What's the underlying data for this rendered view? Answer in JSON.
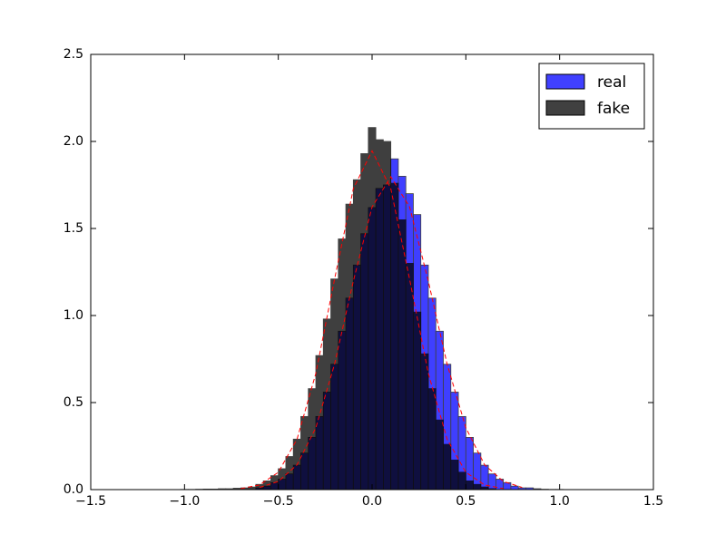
{
  "chart_data": {
    "type": "histogram",
    "xlim": [
      -1.5,
      1.5
    ],
    "ylim": [
      0,
      2.5
    ],
    "xticks": [
      {
        "value": -1.5,
        "label": "−1.5"
      },
      {
        "value": -1.0,
        "label": "−1.0"
      },
      {
        "value": -0.5,
        "label": "−0.5"
      },
      {
        "value": 0,
        "label": "0.0"
      },
      0.5,
      {
        "value": 1.0,
        "label": "1.0"
      },
      1.5
    ],
    "yticks": [
      {
        "value": 0,
        "label": "0.0"
      },
      0.5,
      {
        "value": 1.0,
        "label": "1.0"
      },
      1.5,
      {
        "value": 2.0,
        "label": "2.0"
      },
      2.5
    ],
    "legend": "upper right",
    "series": [
      {
        "name": "real",
        "color": "#0000ff",
        "alpha": 0.75,
        "bins": [
          -0.62,
          -0.58,
          -0.54,
          -0.5,
          -0.46,
          -0.42,
          -0.38,
          -0.34,
          -0.3,
          -0.26,
          -0.22,
          -0.18,
          -0.14,
          -0.1,
          -0.06,
          -0.02,
          0.02,
          0.06,
          0.1,
          0.14,
          0.18,
          0.22,
          0.26,
          0.3,
          0.34,
          0.38,
          0.42,
          0.46,
          0.5,
          0.54,
          0.58,
          0.62,
          0.66,
          0.7,
          0.74,
          0.78,
          0.82,
          0.86,
          0.9,
          0.94,
          0.98,
          1.02
        ],
        "values": [
          0.01,
          0.02,
          0.04,
          0.06,
          0.09,
          0.14,
          0.21,
          0.3,
          0.42,
          0.56,
          0.72,
          0.91,
          1.1,
          1.29,
          1.47,
          1.62,
          1.73,
          1.75,
          1.9,
          1.8,
          1.7,
          1.58,
          1.29,
          1.1,
          0.91,
          0.72,
          0.56,
          0.42,
          0.3,
          0.21,
          0.14,
          0.09,
          0.06,
          0.04,
          0.02,
          0.01,
          0.01,
          0.005,
          0.002,
          0.001,
          0.001
        ]
      },
      {
        "name": "fake",
        "color": "#000000",
        "alpha": 0.75,
        "bins": [
          -1.06,
          -1.02,
          -0.98,
          -0.94,
          -0.9,
          -0.86,
          -0.82,
          -0.78,
          -0.74,
          -0.7,
          -0.66,
          -0.62,
          -0.58,
          -0.54,
          -0.5,
          -0.46,
          -0.42,
          -0.38,
          -0.34,
          -0.3,
          -0.26,
          -0.22,
          -0.18,
          -0.14,
          -0.1,
          -0.06,
          -0.02,
          0.02,
          0.06,
          0.1,
          0.14,
          0.18,
          0.22,
          0.26,
          0.3,
          0.34,
          0.38,
          0.42,
          0.46,
          0.5,
          0.54,
          0.58,
          0.62,
          0.66
        ],
        "values": [
          0,
          0.001,
          0.001,
          0.002,
          0.003,
          0.003,
          0.005,
          0.005,
          0.008,
          0.01,
          0.015,
          0.03,
          0.05,
          0.08,
          0.12,
          0.19,
          0.29,
          0.42,
          0.58,
          0.77,
          0.98,
          1.21,
          1.44,
          1.64,
          1.78,
          1.93,
          2.08,
          2.01,
          2.0,
          1.76,
          1.55,
          1.3,
          1.02,
          0.78,
          0.58,
          0.4,
          0.26,
          0.17,
          0.1,
          0.05,
          0.03,
          0.015,
          0.005
        ]
      }
    ],
    "curves": [
      {
        "color": "#ff0000",
        "x": [
          -0.6,
          -0.5,
          -0.4,
          -0.3,
          -0.2,
          -0.1,
          0,
          0.1,
          0.2,
          0.3,
          0.4,
          0.5,
          0.6,
          0.7,
          0.8
        ],
        "y": [
          0.0125,
          0.0467,
          0.1425,
          0.355,
          0.721,
          1.197,
          1.624,
          1.797,
          1.624,
          1.197,
          0.721,
          0.355,
          0.1425,
          0.0467,
          0.0125
        ]
      },
      {
        "color": "#ff0000",
        "x": [
          -0.7,
          -0.6,
          -0.5,
          -0.4,
          -0.3,
          -0.2,
          -0.1,
          0,
          0.1,
          0.2,
          0.3,
          0.4,
          0.5,
          0.6,
          0.7
        ],
        "y": [
          0.0057,
          0.0268,
          0.0993,
          0.29,
          0.667,
          1.209,
          1.728,
          1.946,
          1.728,
          1.209,
          0.667,
          0.29,
          0.0993,
          0.0268,
          0.0057
        ]
      }
    ]
  }
}
